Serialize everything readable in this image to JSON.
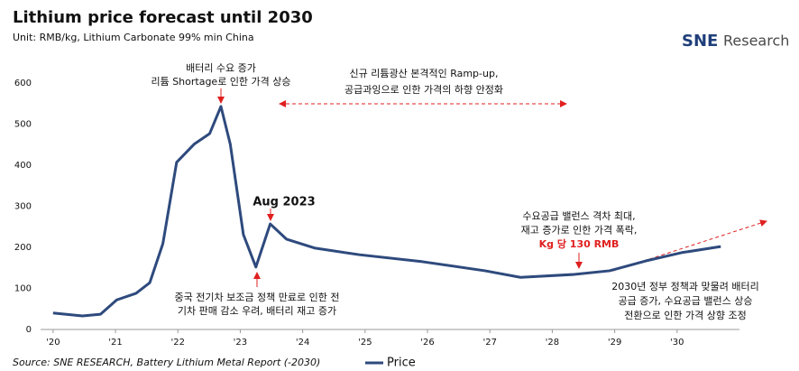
{
  "chart_data": {
    "type": "line",
    "title": "Lithium price forecast until 2030",
    "subtitle": "Unit: RMB/kg, Lithium Carbonate 99% min China",
    "source": "Source: SNE RESEARCH, Battery Lithium Metal Report (-2030)",
    "logo_brand": "SNE",
    "logo_text": "Research",
    "xlim": [
      2019.8,
      2031
    ],
    "xticks": [
      {
        "value": 2020,
        "label": "'20"
      },
      {
        "value": 2021,
        "label": "'21"
      },
      {
        "value": 2022,
        "label": "'22"
      },
      {
        "value": 2023,
        "label": "'23"
      },
      {
        "value": 2024,
        "label": "'24"
      },
      {
        "value": 2025,
        "label": "'25"
      },
      {
        "value": 2026,
        "label": "'26"
      },
      {
        "value": 2027,
        "label": "'27"
      },
      {
        "value": 2028,
        "label": "'28"
      },
      {
        "value": 2029,
        "label": "'29"
      },
      {
        "value": 2030,
        "label": "'30"
      }
    ],
    "ylim": [
      0,
      600
    ],
    "yticks": [
      0,
      100,
      200,
      300,
      400,
      500,
      600
    ],
    "grid": false,
    "x": [
      2020.0,
      2020.47,
      2020.76,
      2021.02,
      2021.33,
      2021.55,
      2021.76,
      2021.98,
      2022.26,
      2022.51,
      2022.69,
      2022.84,
      2023.05,
      2023.25,
      2023.48,
      2023.74,
      2024.2,
      2024.91,
      2025.92,
      2026.92,
      2027.49,
      2028.35,
      2028.92,
      2029.5,
      2030.07,
      2030.7
    ],
    "series": [
      {
        "name": "Price",
        "color": "#2e4a7d",
        "values": [
          40,
          33,
          37,
          72,
          88,
          114,
          209,
          407,
          451,
          477,
          543,
          451,
          231,
          152,
          257,
          220,
          198,
          182,
          165,
          143,
          127,
          134,
          143,
          167,
          187,
          202
        ]
      }
    ],
    "annotations": [
      {
        "text": [
          "배터리 수요 증가",
          "리튬 Shortage로 인한 가격 상승"
        ]
      },
      {
        "text": [
          "신규 리튬광산 본격적인 Ramp-up,",
          "공급과잉으로 인한 가격의 하향 안정화"
        ]
      },
      {
        "text": [
          "Aug 2023"
        ]
      },
      {
        "text": [
          "중국 전기차 보조금 정책 만료로 인한 전",
          "기차 판매 감소 우려, 배터리 재고 증가"
        ]
      },
      {
        "text": [
          "수요공급 밸런스 격차 최대,",
          "재고 증가로 인한 가격 폭락,"
        ],
        "highlight": "Kg 당 130 RMB"
      },
      {
        "text": [
          "2030년 정부 정책과 맞물려 배터리",
          "공급 증가, 수요공급 밸런스 상승",
          "전환으로 인한 가격 상향 조정"
        ]
      }
    ]
  }
}
